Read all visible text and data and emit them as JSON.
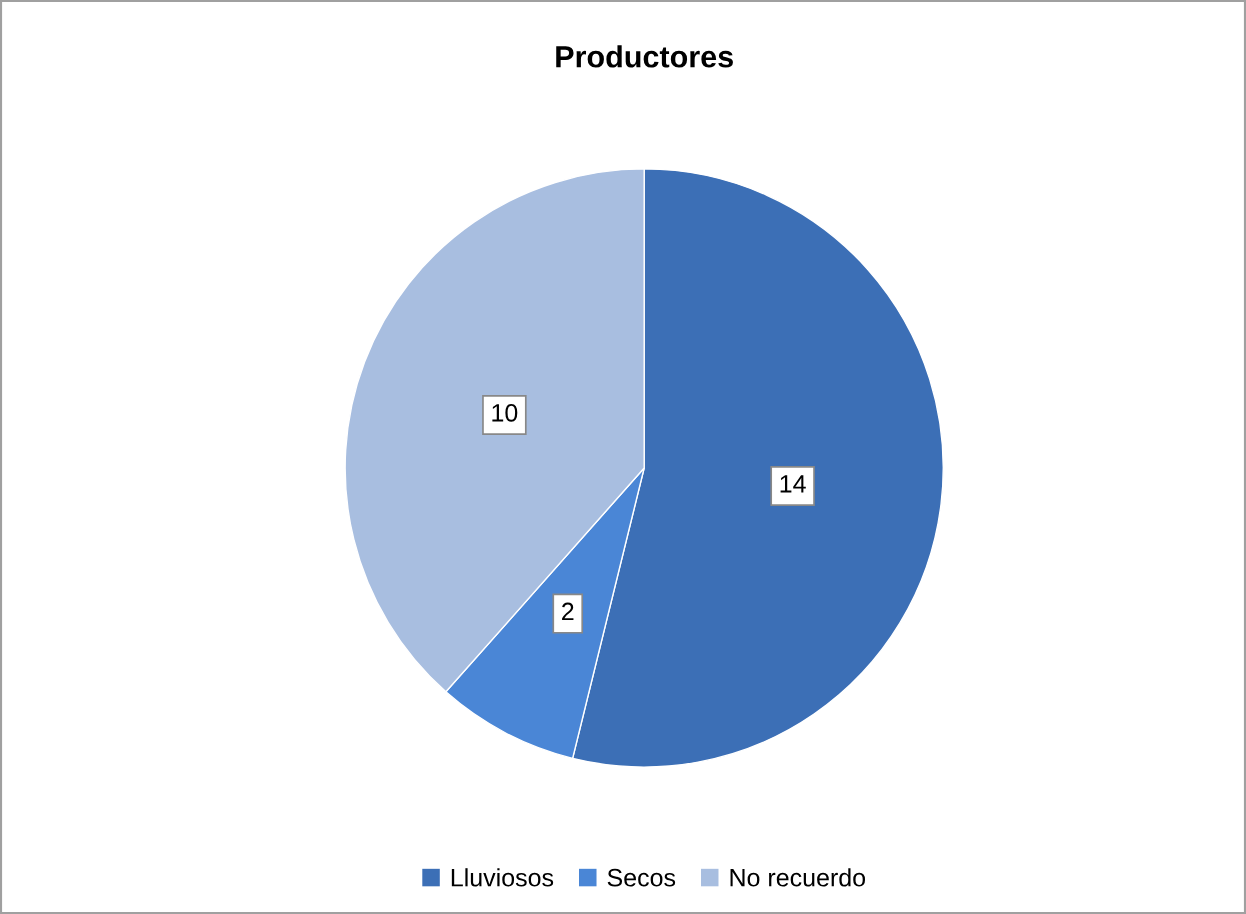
{
  "chart_data": {
    "type": "pie",
    "title": "Productores",
    "categories": [
      "Lluviosos",
      "Secos",
      "No recuerdo"
    ],
    "values": [
      14,
      2,
      10
    ],
    "colors": [
      "#3c6fb6",
      "#4a86d6",
      "#a8bee0"
    ],
    "data_labels": true,
    "legend": "bottom"
  }
}
